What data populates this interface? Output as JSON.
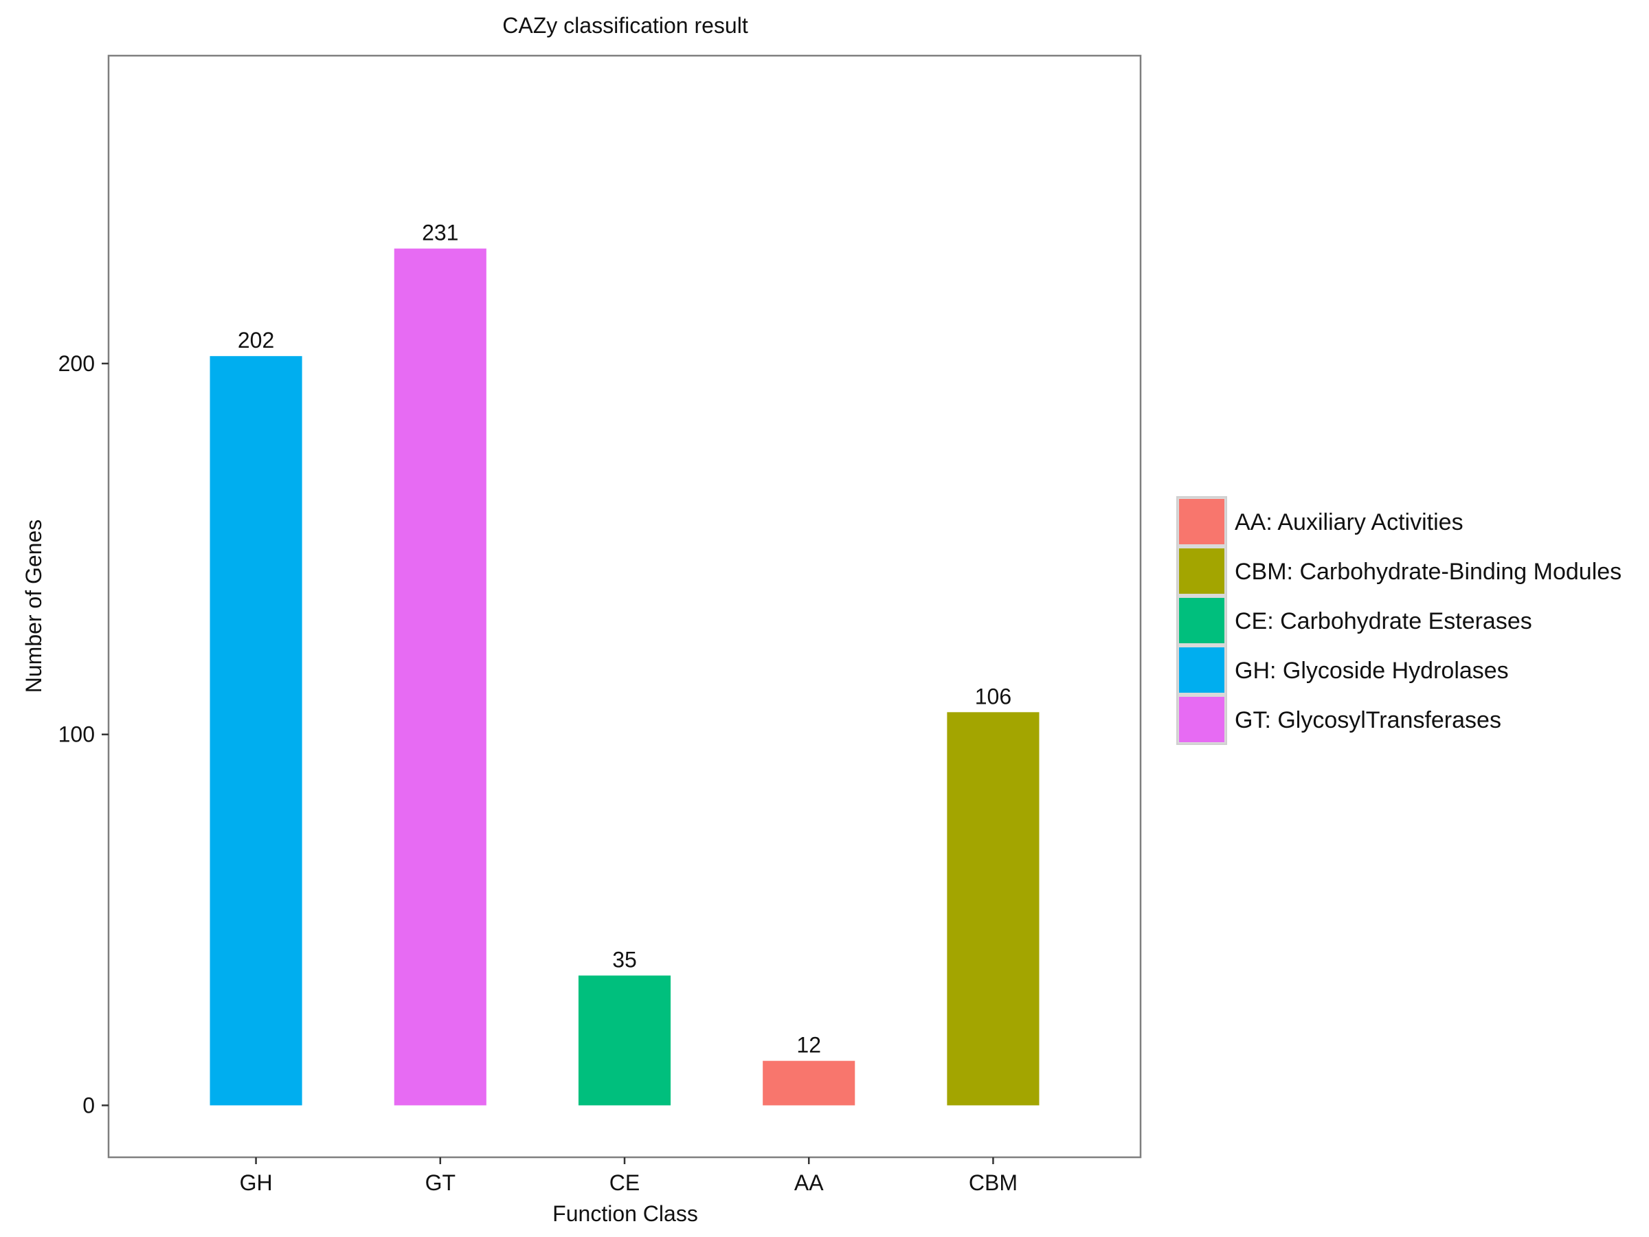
{
  "chart_data": {
    "type": "bar",
    "title": "CAZy classification result",
    "xlabel": "Function Class",
    "ylabel": "Number of Genes",
    "ylim": [
      -14,
      283
    ],
    "yticks": [
      0,
      100,
      200
    ],
    "grid": false,
    "legend_position": "right",
    "categories": [
      "GH",
      "GT",
      "CE",
      "AA",
      "CBM"
    ],
    "values": [
      202,
      231,
      35,
      12,
      106
    ],
    "bar_colors": [
      "#00AEEF",
      "#E76BF3",
      "#00BF7D",
      "#F8766D",
      "#A3A500"
    ],
    "legend": [
      {
        "label": "AA: Auxiliary Activities",
        "color": "#F8766D"
      },
      {
        "label": "CBM: Carbohydrate-Binding Modules",
        "color": "#A3A500"
      },
      {
        "label": "CE: Carbohydrate Esterases",
        "color": "#00BF7D"
      },
      {
        "label": "GH: Glycoside Hydrolases",
        "color": "#00AEEF"
      },
      {
        "label": "GT: GlycosylTransferases",
        "color": "#E76BF3"
      }
    ]
  }
}
